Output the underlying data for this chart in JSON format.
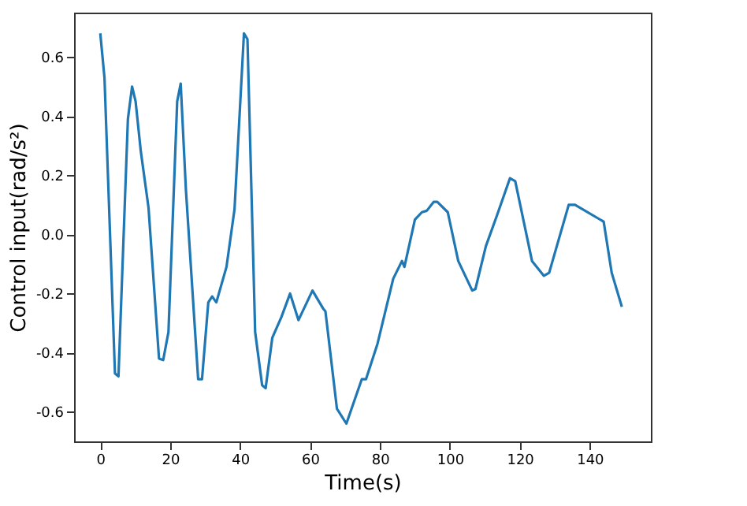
{
  "chart_data": {
    "type": "line",
    "xlabel": "Time(s)",
    "ylabel": "Control input(rad/s²)",
    "x": [
      0,
      1.2,
      4.2,
      5.2,
      7.9,
      9.1,
      10.1,
      11.6,
      13.8,
      16.8,
      18,
      19.5,
      22,
      23,
      24.5,
      28,
      29.1,
      30.9,
      32,
      33.2,
      36.1,
      38.4,
      41.1,
      42.1,
      44.3,
      46.3,
      47.3,
      49.2,
      51.8,
      54.3,
      56.7,
      60.7,
      63.7,
      64.4,
      67.7,
      70.4,
      74.8,
      76,
      79.3,
      83.8,
      86.3,
      87,
      90,
      92,
      93.4,
      95.4,
      96.4,
      99.4,
      102.4,
      106.4,
      107.3,
      110.3,
      113.5,
      117.2,
      118.7,
      123.5,
      126.9,
      128.4,
      134,
      135.8,
      144,
      146.3,
      149.2
    ],
    "series": [
      {
        "color": "#1f77b4",
        "values": [
          0.68,
          0.53,
          -0.47,
          -0.48,
          0.39,
          0.5,
          0.45,
          0.28,
          0.09,
          -0.42,
          -0.425,
          -0.33,
          0.45,
          0.51,
          0.15,
          -0.49,
          -0.49,
          -0.23,
          -0.21,
          -0.23,
          -0.11,
          0.085,
          0.68,
          0.66,
          -0.33,
          -0.51,
          -0.52,
          -0.35,
          -0.28,
          -0.2,
          -0.29,
          -0.19,
          -0.25,
          -0.26,
          -0.59,
          -0.64,
          -0.49,
          -0.49,
          -0.37,
          -0.15,
          -0.09,
          -0.11,
          0.05,
          0.075,
          0.08,
          0.11,
          0.11,
          0.075,
          -0.09,
          -0.19,
          -0.185,
          -0.04,
          0.065,
          0.19,
          0.18,
          -0.09,
          -0.14,
          -0.13,
          0.1,
          0.1,
          0.043,
          -0.13,
          -0.245
        ]
      }
    ],
    "xlim": [
      -7.5,
      157.5
    ],
    "ylim": [
      -0.7,
      0.75
    ],
    "xticks": [
      0,
      20,
      40,
      60,
      80,
      100,
      120,
      140
    ],
    "yticks": [
      {
        "value": -0.6,
        "label": "-0.6"
      },
      {
        "value": -0.4,
        "label": "-0.4"
      },
      {
        "value": -0.2,
        "label": "-0.2"
      },
      {
        "value": 0,
        "label": "0.0"
      },
      {
        "value": 0.2,
        "label": "0.2"
      },
      {
        "value": 0.4,
        "label": "0.4"
      },
      {
        "value": 0.6,
        "label": "0.6"
      }
    ],
    "grid": false,
    "marker": "none",
    "line_style": "solid"
  }
}
